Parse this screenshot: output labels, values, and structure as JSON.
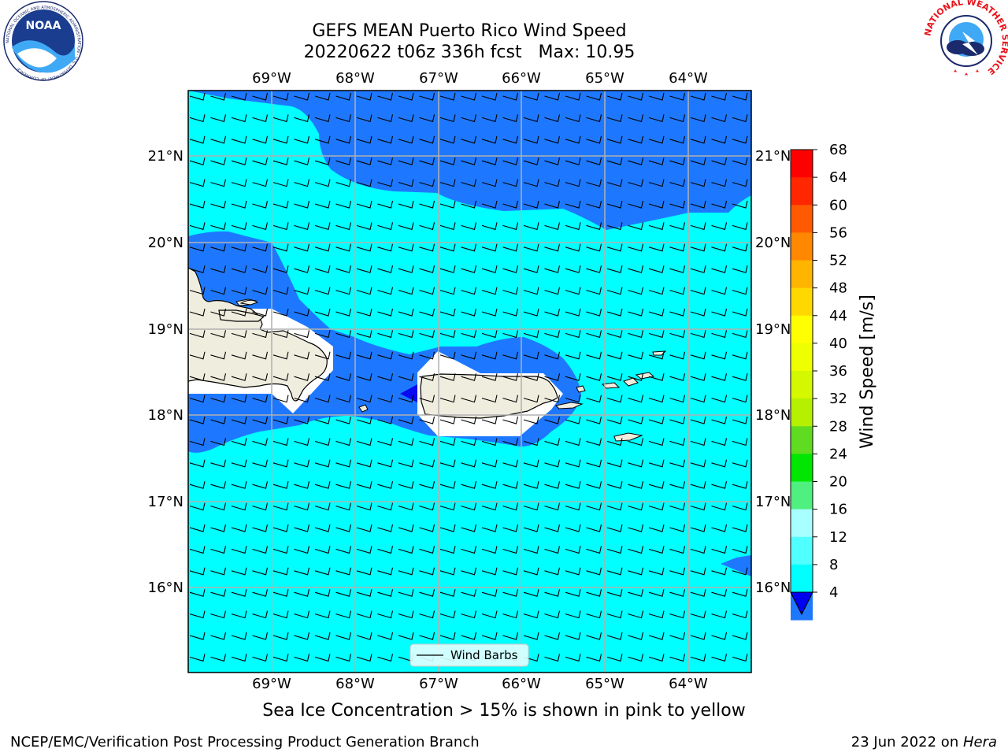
{
  "header": {
    "title_line1": "GEFS MEAN Puerto Rico Wind Speed",
    "title_line2": "20220622 t06z 336h fcst   Max: 10.95"
  },
  "map": {
    "lon_labels": [
      "69°W",
      "68°W",
      "67°W",
      "66°W",
      "65°W",
      "64°W"
    ],
    "lat_labels": [
      "21°N",
      "20°N",
      "19°N",
      "18°N",
      "17°N",
      "16°N"
    ],
    "legend_label": "Wind Barbs",
    "colors": {
      "ocean_light": "#00ffff",
      "ocean_blue": "#1e78ff",
      "land": "#efedde",
      "dark_blue": "#0a0af0"
    }
  },
  "colorbar": {
    "label": "Wind Speed [m/s]",
    "ticks": [
      "68",
      "64",
      "60",
      "56",
      "52",
      "48",
      "44",
      "40",
      "36",
      "32",
      "28",
      "24",
      "20",
      "16",
      "12",
      "8",
      "4"
    ],
    "colors": [
      "#ff0000",
      "#ff2600",
      "#ff5a00",
      "#ff8800",
      "#ffb400",
      "#ffd800",
      "#ffff00",
      "#eeff00",
      "#d4f800",
      "#b4f000",
      "#60dc20",
      "#00e600",
      "#50f080",
      "#a8ffff",
      "#50ffff",
      "#00ffff",
      "#1e78ff"
    ],
    "under_color": "#0000f0"
  },
  "note": "Sea Ice Concentration > 15% is shown in pink to yellow",
  "footer": {
    "left": "NCEP/EMC/Verification Post Processing Product Generation Branch",
    "right_date": "23 Jun 2022 on ",
    "right_host": "Hera"
  },
  "logos": {
    "noaa_text": "NOAA",
    "noaa_ring": "NATIONAL OCEANIC AND ATMOSPHERIC ADMINISTRATION · U.S. DEPARTMENT OF COMMERCE",
    "nws_ring": "NATIONAL WEATHER SERVICE"
  }
}
